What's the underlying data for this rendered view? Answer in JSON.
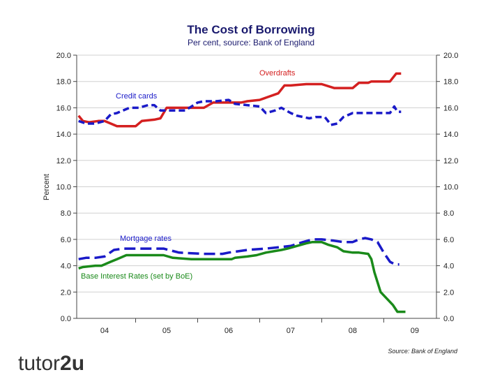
{
  "chart_data": {
    "type": "line",
    "title": "The Cost of Borrowing",
    "subtitle": "Per cent, source: Bank of England",
    "ylabel": "Percent",
    "xlabel": "",
    "ylim": [
      0,
      20
    ],
    "xlim": [
      2003.55,
      2009.35
    ],
    "yticks": [
      "0.0",
      "2.0",
      "4.0",
      "6.0",
      "8.0",
      "10.0",
      "12.0",
      "14.0",
      "16.0",
      "18.0",
      "20.0"
    ],
    "xtick_labels": [
      "04",
      "05",
      "06",
      "07",
      "08",
      "09"
    ],
    "xtick_positions": [
      2004.0,
      2005.0,
      2006.0,
      2007.0,
      2008.0,
      2009.0
    ],
    "source": "Source: Bank of England",
    "series": [
      {
        "name": "Overdrafts",
        "color": "#d42020",
        "dash": "solid",
        "x": [
          2003.58,
          2003.65,
          2003.75,
          2003.9,
          2004.0,
          2004.2,
          2004.3,
          2004.5,
          2004.6,
          2004.8,
          2004.9,
          2005.0,
          2005.3,
          2005.6,
          2005.75,
          2005.9,
          2006.2,
          2006.3,
          2006.5,
          2006.8,
          2006.9,
          2007.0,
          2007.25,
          2007.5,
          2007.7,
          2007.85,
          2008.0,
          2008.1,
          2008.25,
          2008.3,
          2008.5,
          2008.6,
          2008.7,
          2008.78
        ],
        "values": [
          15.4,
          15.0,
          14.9,
          15.0,
          15.0,
          14.6,
          14.6,
          14.6,
          15.0,
          15.1,
          15.2,
          16.0,
          16.0,
          16.0,
          16.4,
          16.4,
          16.4,
          16.5,
          16.6,
          17.1,
          17.7,
          17.7,
          17.8,
          17.8,
          17.5,
          17.5,
          17.5,
          17.9,
          17.9,
          18.0,
          18.0,
          18.0,
          18.6,
          18.6
        ]
      },
      {
        "name": "Credit cards",
        "color": "#1a1ac8",
        "dash": "dashed",
        "x": [
          2003.58,
          2003.7,
          2003.85,
          2004.0,
          2004.1,
          2004.2,
          2004.4,
          2004.55,
          2004.7,
          2004.8,
          2004.9,
          2005.0,
          2005.3,
          2005.5,
          2005.6,
          2005.8,
          2006.0,
          2006.1,
          2006.3,
          2006.5,
          2006.6,
          2006.75,
          2006.85,
          2007.0,
          2007.1,
          2007.3,
          2007.4,
          2007.55,
          2007.65,
          2007.75,
          2007.85,
          2008.0,
          2008.2,
          2008.35,
          2008.5,
          2008.6,
          2008.67,
          2008.72,
          2008.78
        ],
        "values": [
          15.0,
          14.8,
          14.8,
          15.0,
          15.5,
          15.6,
          16.0,
          16.0,
          16.2,
          16.2,
          15.8,
          15.8,
          15.8,
          16.4,
          16.5,
          16.5,
          16.6,
          16.3,
          16.2,
          16.1,
          15.6,
          15.8,
          16.0,
          15.6,
          15.4,
          15.2,
          15.3,
          15.3,
          14.7,
          14.8,
          15.3,
          15.6,
          15.6,
          15.6,
          15.6,
          15.6,
          16.1,
          15.7,
          15.7
        ]
      },
      {
        "name": "Mortgage rates",
        "color": "#1a1ac8",
        "dash": "long-dashed",
        "x": [
          2003.58,
          2003.7,
          2003.85,
          2004.0,
          2004.15,
          2004.3,
          2004.5,
          2004.8,
          2004.95,
          2005.2,
          2005.6,
          2005.9,
          2006.0,
          2006.3,
          2006.6,
          2006.8,
          2007.0,
          2007.2,
          2007.35,
          2007.5,
          2007.7,
          2007.85,
          2008.0,
          2008.1,
          2008.2,
          2008.3,
          2008.4,
          2008.5,
          2008.6,
          2008.68,
          2008.75
        ],
        "values": [
          4.5,
          4.6,
          4.6,
          4.7,
          5.2,
          5.3,
          5.3,
          5.3,
          5.3,
          5.0,
          4.9,
          4.9,
          5.0,
          5.2,
          5.3,
          5.4,
          5.5,
          5.8,
          6.0,
          6.0,
          5.9,
          5.8,
          5.8,
          6.0,
          6.1,
          6.0,
          5.8,
          5.0,
          4.3,
          4.1,
          4.1
        ]
      },
      {
        "name": "Base Interest Rates (set by BoE)",
        "color": "#1a8a1a",
        "dash": "solid",
        "x": [
          2003.58,
          2003.65,
          2003.85,
          2003.95,
          2004.1,
          2004.2,
          2004.35,
          2004.6,
          2004.9,
          2004.95,
          2005.1,
          2005.4,
          2005.6,
          2005.9,
          2006.05,
          2006.1,
          2006.3,
          2006.45,
          2006.6,
          2006.85,
          2006.95,
          2007.1,
          2007.25,
          2007.35,
          2007.5,
          2007.6,
          2007.75,
          2007.85,
          2008.0,
          2008.1,
          2008.25,
          2008.3,
          2008.35,
          2008.45,
          2008.55,
          2008.65,
          2008.72,
          2008.78,
          2008.85
        ],
        "values": [
          3.8,
          3.9,
          4.0,
          4.0,
          4.3,
          4.5,
          4.8,
          4.8,
          4.8,
          4.8,
          4.6,
          4.5,
          4.5,
          4.5,
          4.5,
          4.6,
          4.7,
          4.8,
          5.0,
          5.2,
          5.3,
          5.5,
          5.7,
          5.8,
          5.8,
          5.6,
          5.4,
          5.1,
          5.0,
          5.0,
          4.9,
          4.5,
          3.5,
          2.0,
          1.5,
          1.0,
          0.5,
          0.5,
          0.5
        ]
      }
    ],
    "annotations": [
      {
        "text": "Overdrafts",
        "series": 0
      },
      {
        "text": "Credit cards",
        "series": 1
      },
      {
        "text": "Mortgage rates",
        "series": 2
      },
      {
        "text": "Base Interest Rates (set by BoE)",
        "series": 3
      }
    ]
  },
  "branding": {
    "logo_part1": "tutor",
    "logo_part2": "2u"
  }
}
